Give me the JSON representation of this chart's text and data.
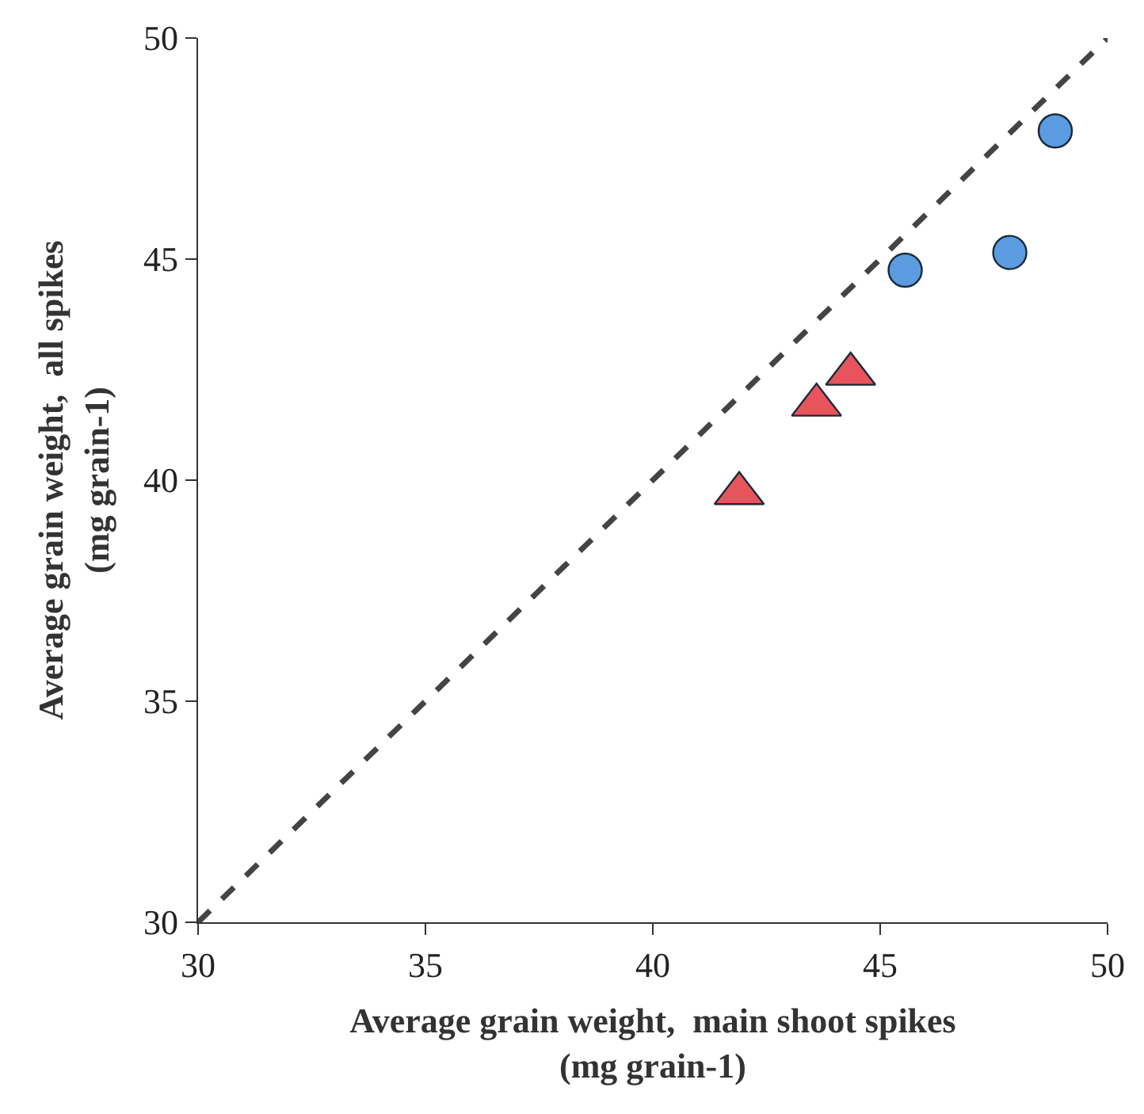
{
  "chart_data": {
    "type": "scatter",
    "xlabel": "Average grain weight,  main shoot spikes\n(mg grain-1)",
    "ylabel": "Average grain weight,  all spikes\n(mg grain-1)",
    "xlim": [
      30,
      50
    ],
    "ylim": [
      30,
      50
    ],
    "xticks": [
      30,
      35,
      40,
      45,
      50
    ],
    "yticks": [
      30,
      35,
      40,
      45,
      50
    ],
    "series": [
      {
        "type": "line",
        "line_style": "dashed",
        "marker": "none",
        "color": "#444444",
        "x": [
          30,
          50
        ],
        "values": [
          30,
          50
        ]
      },
      {
        "marker": "triangle",
        "color": "#e8545c",
        "x": [
          41.9,
          43.6,
          44.35
        ],
        "values": [
          39.7,
          41.7,
          42.4
        ]
      },
      {
        "marker": "circle",
        "color": "#5b9be0",
        "x": [
          45.55,
          47.85,
          48.85
        ],
        "values": [
          44.75,
          45.15,
          47.9
        ]
      }
    ]
  }
}
